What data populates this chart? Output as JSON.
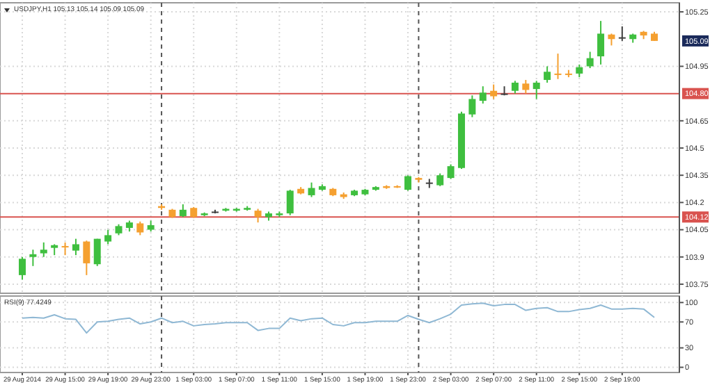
{
  "chart_data": [
    {
      "type": "candlestick",
      "title": "USDJPY,H1 105.13 105.14 105.09 105.09",
      "ohlc": [
        [
          103.8,
          103.9,
          103.775,
          103.89
        ],
        [
          103.9,
          103.94,
          103.85,
          103.915
        ],
        [
          103.92,
          103.98,
          103.9,
          103.94
        ],
        [
          103.95,
          103.97,
          103.91,
          103.965
        ],
        [
          103.96,
          103.98,
          103.91,
          103.955
        ],
        [
          103.935,
          104.0,
          103.91,
          103.97
        ],
        [
          103.985,
          103.99,
          103.8,
          103.865
        ],
        [
          103.86,
          104.0,
          103.85,
          104.0
        ],
        [
          103.985,
          104.05,
          103.97,
          104.02
        ],
        [
          104.03,
          104.08,
          104.02,
          104.07
        ],
        [
          104.06,
          104.1,
          104.04,
          104.09
        ],
        [
          104.085,
          104.095,
          104.02,
          104.035
        ],
        [
          104.05,
          104.1,
          104.04,
          104.075
        ],
        [
          104.18,
          104.19,
          104.16,
          104.17
        ],
        [
          104.16,
          104.165,
          104.115,
          104.12
        ],
        [
          104.125,
          104.19,
          104.12,
          104.16
        ],
        [
          104.17,
          104.175,
          104.115,
          104.12
        ],
        [
          104.13,
          104.145,
          104.125,
          104.14
        ],
        [
          104.15,
          104.16,
          104.14,
          104.15
        ],
        [
          104.155,
          104.17,
          104.15,
          104.165
        ],
        [
          104.155,
          104.17,
          104.15,
          104.165
        ],
        [
          104.16,
          104.18,
          104.155,
          104.17
        ],
        [
          104.155,
          104.165,
          104.09,
          104.12
        ],
        [
          104.12,
          104.15,
          104.1,
          104.14
        ],
        [
          104.13,
          104.15,
          104.12,
          104.14
        ],
        [
          104.14,
          104.27,
          104.13,
          104.265
        ],
        [
          104.275,
          104.285,
          104.245,
          104.25
        ],
        [
          104.24,
          104.31,
          104.23,
          104.28
        ],
        [
          104.27,
          104.3,
          104.265,
          104.29
        ],
        [
          104.275,
          104.28,
          104.235,
          104.24
        ],
        [
          104.245,
          104.255,
          104.22,
          104.23
        ],
        [
          104.24,
          104.27,
          104.235,
          104.265
        ],
        [
          104.245,
          104.275,
          104.24,
          104.27
        ],
        [
          104.27,
          104.29,
          104.265,
          104.285
        ],
        [
          104.29,
          104.295,
          104.275,
          104.28
        ],
        [
          104.29,
          104.295,
          104.28,
          104.285
        ],
        [
          104.27,
          104.35,
          104.265,
          104.345
        ],
        [
          104.335,
          104.34,
          104.31,
          104.325
        ],
        [
          104.31,
          104.33,
          104.28,
          104.31
        ],
        [
          104.295,
          104.36,
          104.29,
          104.35
        ],
        [
          104.335,
          104.41,
          104.33,
          104.4
        ],
        [
          104.39,
          104.7,
          104.385,
          104.69
        ],
        [
          104.685,
          104.79,
          104.67,
          104.77
        ],
        [
          104.76,
          104.84,
          104.745,
          104.805
        ],
        [
          104.815,
          104.85,
          104.77,
          104.785
        ],
        [
          104.8,
          104.84,
          104.79,
          104.8
        ],
        [
          104.815,
          104.87,
          104.8,
          104.86
        ],
        [
          104.855,
          104.875,
          104.8,
          104.82
        ],
        [
          104.825,
          104.87,
          104.77,
          104.86
        ],
        [
          104.875,
          104.95,
          104.86,
          104.92
        ],
        [
          104.91,
          105.02,
          104.88,
          104.905
        ],
        [
          104.91,
          104.93,
          104.89,
          104.905
        ],
        [
          104.91,
          104.96,
          104.89,
          104.945
        ],
        [
          104.95,
          105.03,
          104.94,
          104.995
        ],
        [
          105.005,
          105.2,
          104.96,
          105.13
        ],
        [
          105.125,
          105.13,
          105.065,
          105.1
        ],
        [
          105.11,
          105.17,
          105.09,
          105.11
        ],
        [
          105.1,
          105.13,
          105.08,
          105.125
        ],
        [
          105.14,
          105.145,
          105.1,
          105.12
        ],
        [
          105.13,
          105.14,
          105.09,
          105.09
        ]
      ],
      "colors": [
        "#3fbf3f",
        "#3fbf3f",
        "#3fbf3f",
        "#3fbf3f",
        "#f5a030",
        "#3fbf3f",
        "#f5a030",
        "#3fbf3f",
        "#3fbf3f",
        "#3fbf3f",
        "#3fbf3f",
        "#f5a030",
        "#3fbf3f",
        "#f5a030",
        "#f5a030",
        "#3fbf3f",
        "#f5a030",
        "#3fbf3f",
        "#404040",
        "#3fbf3f",
        "#3fbf3f",
        "#3fbf3f",
        "#f5a030",
        "#3fbf3f",
        "#3fbf3f",
        "#3fbf3f",
        "#f5a030",
        "#3fbf3f",
        "#3fbf3f",
        "#f5a030",
        "#f5a030",
        "#3fbf3f",
        "#3fbf3f",
        "#3fbf3f",
        "#f5a030",
        "#f5a030",
        "#3fbf3f",
        "#f5a030",
        "#404040",
        "#3fbf3f",
        "#3fbf3f",
        "#3fbf3f",
        "#3fbf3f",
        "#3fbf3f",
        "#f5a030",
        "#404040",
        "#3fbf3f",
        "#f5a030",
        "#3fbf3f",
        "#3fbf3f",
        "#f5a030",
        "#f5a030",
        "#3fbf3f",
        "#3fbf3f",
        "#3fbf3f",
        "#f5a030",
        "#404040",
        "#3fbf3f",
        "#f5a030",
        "#f5a030"
      ],
      "ylim": [
        103.7,
        105.3
      ],
      "yticks": [
        105.25,
        104.95,
        104.65,
        104.5,
        104.35,
        104.2,
        104.05,
        103.9,
        103.75
      ],
      "grid": true,
      "tick_labels": "y",
      "ref_lines": [
        {
          "axis": "y",
          "value": 104.8,
          "label": "104.80",
          "color": "#d9534f",
          "line_style": "solid"
        },
        {
          "axis": "y",
          "value": 104.12,
          "label": "104.12",
          "color": "#d9534f",
          "line_style": "solid"
        }
      ],
      "annotations": [
        {
          "text": "105.09",
          "y": 105.09
        }
      ]
    },
    {
      "type": "line",
      "title": "RSI(9) 77.4249",
      "categories": [
        "29 Aug 2014",
        null,
        null,
        null,
        "29 Aug 15:00",
        null,
        null,
        null,
        "29 Aug 19:00",
        null,
        null,
        null,
        "29 Aug 23:00",
        null,
        null,
        null,
        "1 Sep 03:00",
        null,
        null,
        null,
        "1 Sep 07:00",
        null,
        null,
        null,
        "1 Sep 11:00",
        null,
        null,
        null,
        "1 Sep 15:00",
        null,
        null,
        null,
        "1 Sep 19:00",
        null,
        null,
        null,
        "1 Sep 23:00",
        null,
        null,
        null,
        "2 Sep 03:00",
        null,
        null,
        null,
        "2 Sep 07:00",
        null,
        null,
        null,
        "2 Sep 11:00",
        null,
        null,
        null,
        "2 Sep 15:00",
        null,
        null,
        null,
        "2 Sep 19:00",
        null,
        null,
        null
      ],
      "series": [
        {
          "color": "#8fb8d4",
          "values": [
            76,
            77,
            76,
            81,
            75,
            74,
            53,
            70,
            71,
            74,
            76,
            67,
            70,
            76,
            69,
            71,
            64,
            66,
            67,
            69,
            69,
            69,
            57,
            60,
            60,
            76,
            72,
            75,
            76,
            66,
            64,
            69,
            69,
            71,
            71,
            71,
            80,
            74,
            69,
            75,
            82,
            96,
            98,
            99,
            95,
            97,
            97,
            88,
            91,
            92,
            86,
            86,
            89,
            91,
            96,
            90,
            90,
            91,
            90,
            77
          ]
        }
      ],
      "ylim": [
        -8,
        110
      ],
      "yticks": [
        100,
        70,
        30,
        0
      ],
      "grid": true
    }
  ]
}
